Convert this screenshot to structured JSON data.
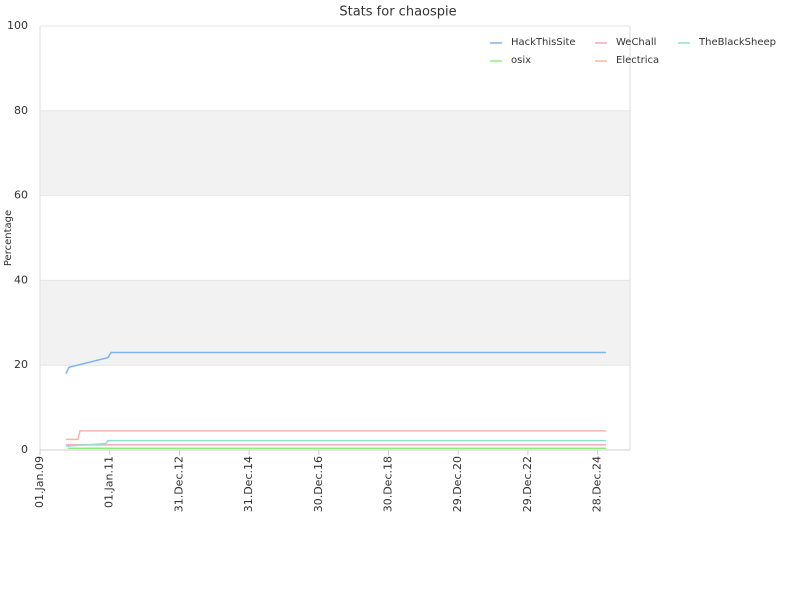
{
  "chart_data": {
    "type": "line",
    "title": "Stats for chaospie",
    "y_label": "Percentage",
    "ylim": [
      0,
      100
    ],
    "yticks": [
      0,
      20,
      40,
      60,
      80,
      100
    ],
    "alternate_bands": true,
    "xlim": [
      "2009-01-01",
      "2025-12-02"
    ],
    "xticks": [
      {
        "value": "2009-01-01",
        "label": "01.Jan.09"
      },
      {
        "value": "2011-01-01",
        "label": "01.Jan.11"
      },
      {
        "value": "2012-12-31",
        "label": "31.Dec.12"
      },
      {
        "value": "2014-12-31",
        "label": "31.Dec.14"
      },
      {
        "value": "2016-12-30",
        "label": "30.Dec.16"
      },
      {
        "value": "2018-12-30",
        "label": "30.Dec.18"
      },
      {
        "value": "2020-12-29",
        "label": "29.Dec.20"
      },
      {
        "value": "2022-12-29",
        "label": "29.Dec.22"
      },
      {
        "value": "2024-12-28",
        "label": "28.Dec.24"
      }
    ],
    "series": [
      {
        "name": "HackThisSite",
        "color": "#7cb5ec",
        "x": [
          "2009-09-30",
          "2009-11-01",
          "2010-12-14",
          "2011-01-15",
          "2025-03-26"
        ],
        "values": [
          18,
          19.5,
          21.8,
          23,
          23
        ]
      },
      {
        "name": "WeChall",
        "color": "#f3a6c3",
        "x": [
          "2009-09-30",
          "2025-03-26"
        ],
        "values": [
          1.2,
          1.2
        ]
      },
      {
        "name": "TheBlackSheep",
        "color": "#8ee0cf",
        "x": [
          "2009-09-30",
          "2010-11-20",
          "2010-12-14",
          "2025-03-26"
        ],
        "values": [
          0.9,
          1.5,
          2.2,
          2.2
        ]
      },
      {
        "name": "osix",
        "color": "#90ed7d",
        "x": [
          "2009-10-20",
          "2025-03-26"
        ],
        "values": [
          0.4,
          0.4
        ]
      },
      {
        "name": "Electrica",
        "color": "#f7b7a3",
        "x": [
          "2009-09-30",
          "2010-02-03",
          "2010-02-24",
          "2025-03-26"
        ],
        "values": [
          2.5,
          2.5,
          4.5,
          4.5
        ]
      }
    ]
  }
}
